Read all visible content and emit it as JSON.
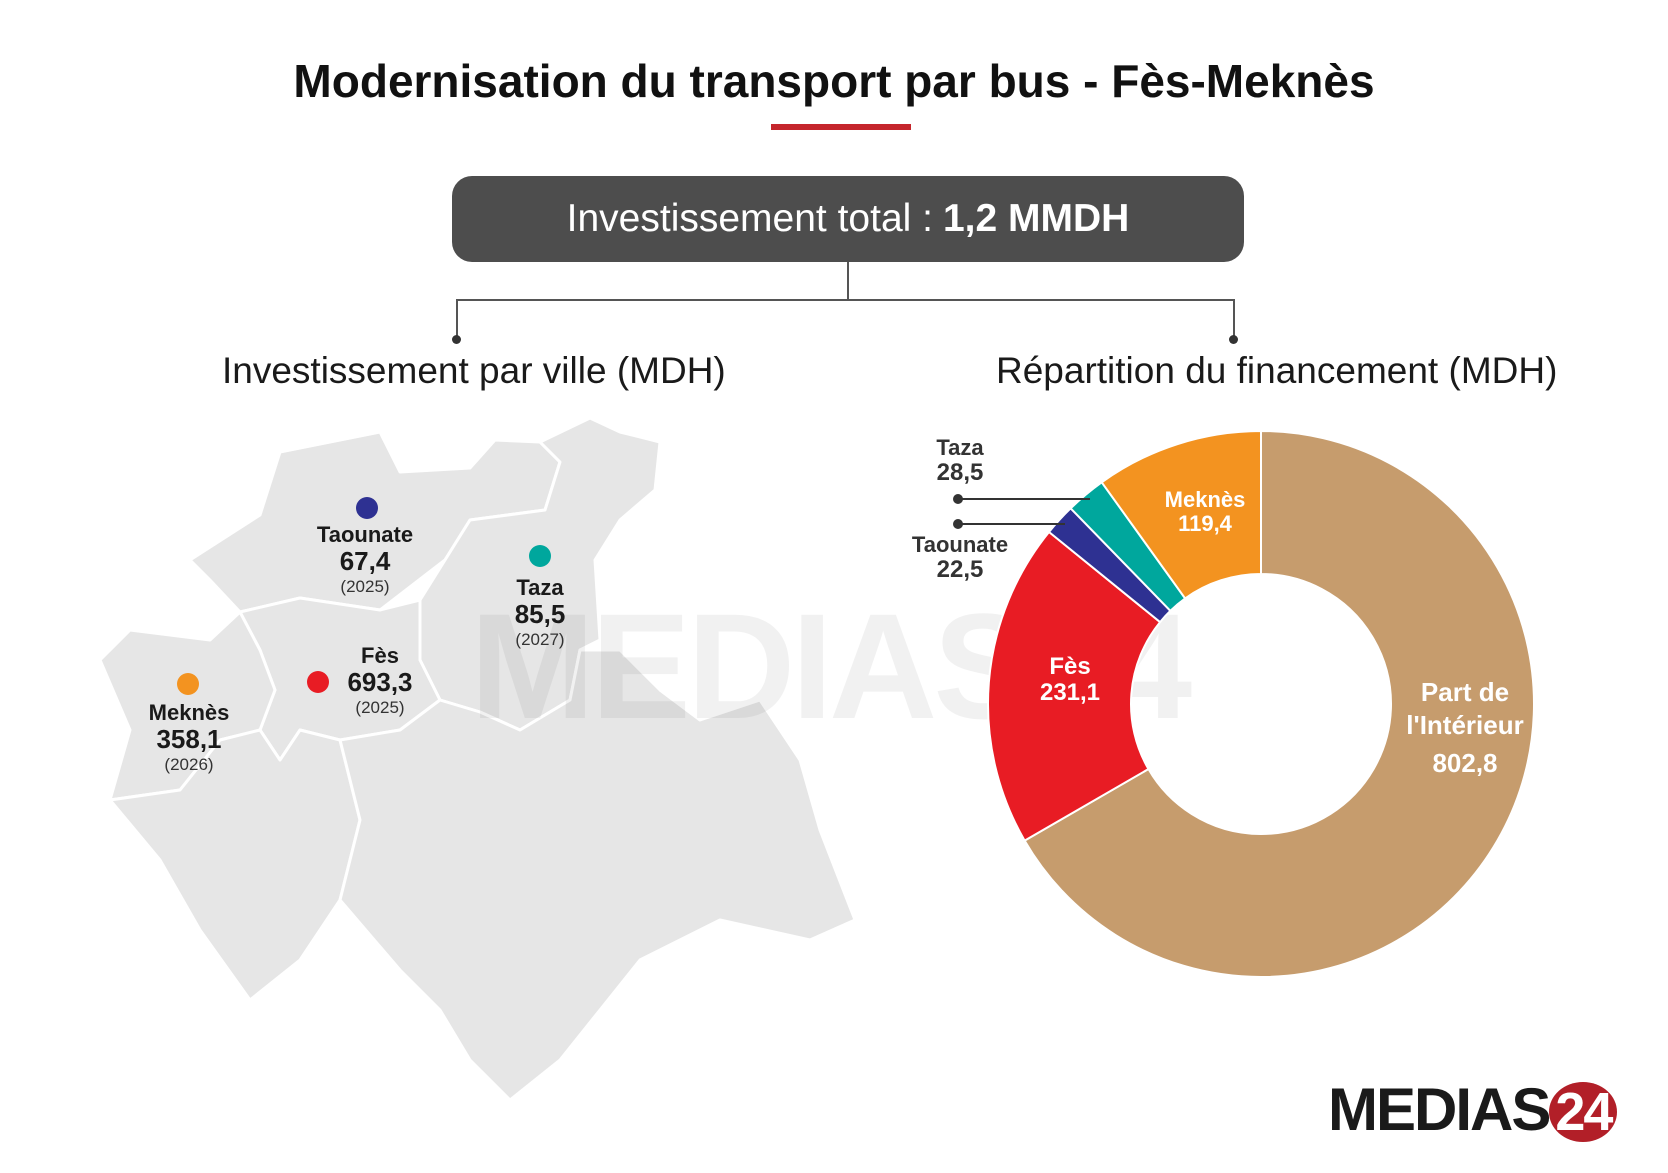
{
  "title": "Modernisation du transport par bus - Fès-Meknès",
  "total": {
    "label": "Investissement total :",
    "value": "1,2 MMDH"
  },
  "left_section": {
    "title": "Investissement par ville",
    "unit": "(MDH)"
  },
  "right_section": {
    "title": "Répartition du financement",
    "unit": "(MDH)"
  },
  "watermark": "MEDIAS24",
  "logo": {
    "text": "MEDIAS",
    "num": "24"
  },
  "colors": {
    "fes": "#e81c24",
    "meknes": "#f39320",
    "taza": "#00a79d",
    "taounate": "#2e3192",
    "interieur": "#c69c6d",
    "accent": "#c5262c"
  },
  "cities": [
    {
      "name": "Taounate",
      "value": "67,4",
      "year": "(2025)",
      "color": "#2e3192"
    },
    {
      "name": "Taza",
      "value": "85,5",
      "year": "(2027)",
      "color": "#00a79d"
    },
    {
      "name": "Fès",
      "value": "693,3",
      "year": "(2025)",
      "color": "#e81c24"
    },
    {
      "name": "Meknès",
      "value": "358,1",
      "year": "(2026)",
      "color": "#f39320"
    }
  ],
  "chart_data": {
    "type": "pie",
    "title": "Répartition du financement (MDH)",
    "slices": [
      {
        "name": "Part de l'Intérieur",
        "value": 802.8,
        "label": "802,8",
        "color": "#c69c6d"
      },
      {
        "name": "Fès",
        "value": 231.1,
        "label": "231,1",
        "color": "#e81c24"
      },
      {
        "name": "Taounate",
        "value": 22.5,
        "label": "22,5",
        "color": "#2e3192"
      },
      {
        "name": "Taza",
        "value": 28.5,
        "label": "28,5",
        "color": "#00a79d"
      },
      {
        "name": "Meknès",
        "value": 119.4,
        "label": "119,4",
        "color": "#f39320"
      }
    ],
    "donut": true
  },
  "slice_text": {
    "interieur_name_1": "Part de",
    "interieur_name_2": "l'Intérieur",
    "interieur_value": "802,8",
    "fes_name": "Fès",
    "fes_value": "231,1",
    "meknes_name": "Meknès",
    "meknes_value": "119,4",
    "taza_name": "Taza",
    "taza_value": "28,5",
    "taounate_name": "Taounate",
    "taounate_value": "22,5"
  }
}
